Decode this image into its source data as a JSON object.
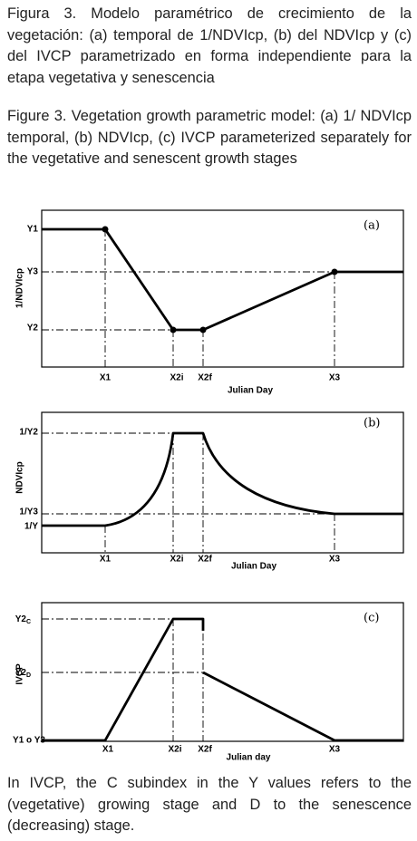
{
  "caption_es": "Figura 3. Modelo paramétrico de crecimiento de la vegetación: (a) temporal de 1/NDVIcp, (b) del NDVIcp y (c) del IVCP parametrizado en forma independiente para la etapa vegetativa y senescencia",
  "caption_en": "Figure 3. Vegetation growth parametric model: (a) 1/ NDVIcp temporal, (b) NDVIcp, (c) IVCP parameterized separately for the vegetative and senescent growth stages",
  "panels": [
    {
      "tag": "(a)",
      "ylabel": "1/NDVIcp",
      "xlabel": "Julian Day",
      "ytick_labels": [
        "Y1",
        "Y3",
        "Y2"
      ],
      "xtick_labels": [
        "X1",
        "X2i",
        "X2f",
        "X3"
      ]
    },
    {
      "tag": "(b)",
      "ylabel": "NDVIcp",
      "xlabel": "Julian Day",
      "ytick_labels": [
        "1/Y2",
        "1/Y3",
        "1/Y"
      ],
      "xtick_labels": [
        "X1",
        "X2i",
        "X2f",
        "X3"
      ]
    },
    {
      "tag": "(c)",
      "ylabel": "IVCP",
      "xlabel": "Julian day",
      "ytick_labels": [
        {
          "text": "Y2",
          "sub": "C"
        },
        {
          "text": "Y2",
          "sub": "D"
        },
        {
          "text": "Y1 o Y3"
        }
      ],
      "xtick_labels": [
        "X1",
        "X2i",
        "X2f",
        "X3"
      ]
    }
  ],
  "footnote": "In IVCP, the C subindex in the Y values refers to the (vegetative) growing stage and D to the senescence (decreasing) stage."
}
